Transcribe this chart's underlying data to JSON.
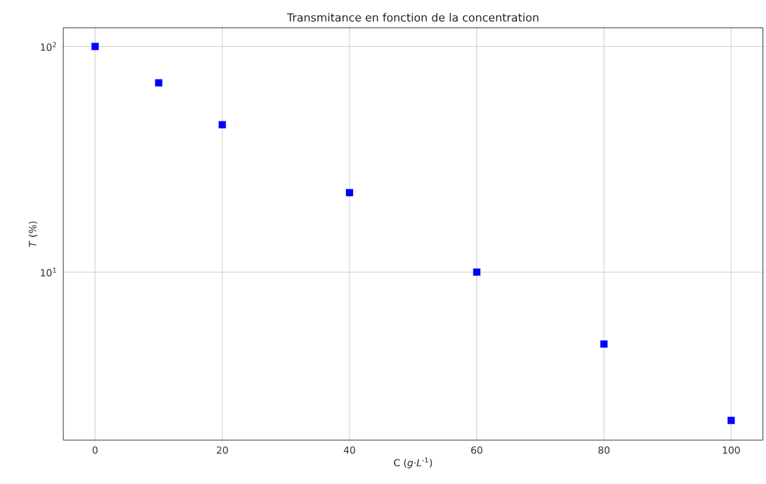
{
  "chart_data": {
    "type": "scatter",
    "title": "Transmitance en fonction de la concentration",
    "xlabel": "C (*g*·*L*$^{-1}$)",
    "ylabel": "*T* (%)",
    "x": [
      0,
      10,
      20,
      40,
      60,
      80,
      100
    ],
    "series": [
      {
        "color": "#0000ff",
        "values": [
          100,
          69,
          45,
          22.5,
          10,
          4.8,
          2.2
        ]
      }
    ],
    "xlim": [
      -5,
      105
    ],
    "ylim": [
      1.8,
      121
    ],
    "xticks": [
      0,
      20,
      40,
      60,
      80,
      100
    ],
    "yticks": [
      {
        "value": 10,
        "label": "10$^{1}$"
      },
      {
        "value": 100,
        "label": "10$^{2}$"
      }
    ],
    "log": "y",
    "grid": true,
    "marker": "square"
  }
}
